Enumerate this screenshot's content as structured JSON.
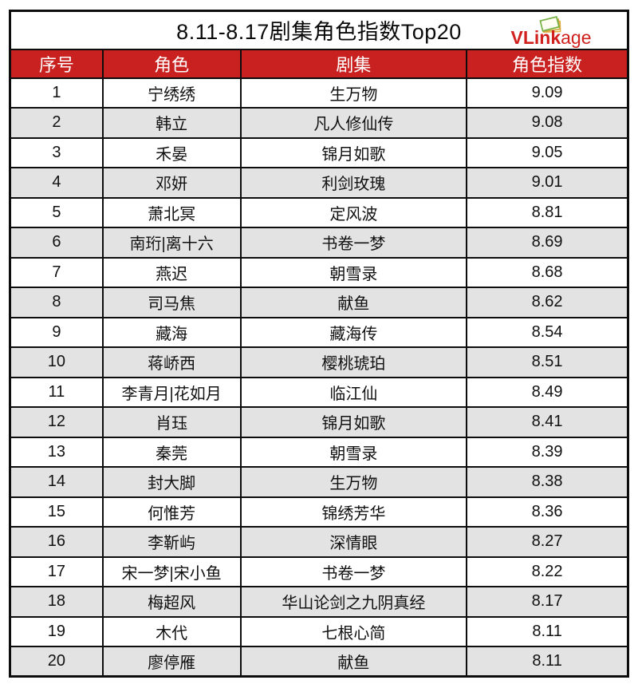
{
  "title_bar": {
    "title": "8.11-8.17剧集角色指数Top20"
  },
  "logo": {
    "text_bold": "VLink",
    "text_light": "age",
    "icon": "stacked-cards-icon",
    "color": "#d0211e"
  },
  "colors": {
    "header_background": "#c9211f",
    "header_text": "#ffffff",
    "row_alt_background": "#e3e3e3",
    "border": "#0d0d0d"
  },
  "chart_data": {
    "type": "table",
    "title": "8.11-8.17剧集角色指数Top20",
    "columns": [
      "序号",
      "角色",
      "剧集",
      "角色指数"
    ],
    "rows": [
      {
        "rank": "1",
        "role": "宁绣绣",
        "drama": "生万物",
        "index": "9.09"
      },
      {
        "rank": "2",
        "role": "韩立",
        "drama": "凡人修仙传",
        "index": "9.08"
      },
      {
        "rank": "3",
        "role": "禾晏",
        "drama": "锦月如歌",
        "index": "9.05"
      },
      {
        "rank": "4",
        "role": "邓妍",
        "drama": "利剑玫瑰",
        "index": "9.01"
      },
      {
        "rank": "5",
        "role": "萧北冥",
        "drama": "定风波",
        "index": "8.81"
      },
      {
        "rank": "6",
        "role": "南珩|离十六",
        "drama": "书卷一梦",
        "index": "8.69"
      },
      {
        "rank": "7",
        "role": "燕迟",
        "drama": "朝雪录",
        "index": "8.68"
      },
      {
        "rank": "8",
        "role": "司马焦",
        "drama": "献鱼",
        "index": "8.62"
      },
      {
        "rank": "9",
        "role": "藏海",
        "drama": "藏海传",
        "index": "8.54"
      },
      {
        "rank": "10",
        "role": "蒋峤西",
        "drama": "樱桃琥珀",
        "index": "8.51"
      },
      {
        "rank": "11",
        "role": "李青月|花如月",
        "drama": "临江仙",
        "index": "8.49"
      },
      {
        "rank": "12",
        "role": "肖珏",
        "drama": "锦月如歌",
        "index": "8.41"
      },
      {
        "rank": "13",
        "role": "秦莞",
        "drama": "朝雪录",
        "index": "8.39"
      },
      {
        "rank": "14",
        "role": "封大脚",
        "drama": "生万物",
        "index": "8.38"
      },
      {
        "rank": "15",
        "role": "何惟芳",
        "drama": "锦绣芳华",
        "index": "8.36"
      },
      {
        "rank": "16",
        "role": "李靳屿",
        "drama": "深情眼",
        "index": "8.27"
      },
      {
        "rank": "17",
        "role": "宋一梦|宋小鱼",
        "drama": "书卷一梦",
        "index": "8.22"
      },
      {
        "rank": "18",
        "role": "梅超风",
        "drama": "华山论剑之九阴真经",
        "index": "8.17"
      },
      {
        "rank": "19",
        "role": "木代",
        "drama": "七根心简",
        "index": "8.11"
      },
      {
        "rank": "20",
        "role": "廖停雁",
        "drama": "献鱼",
        "index": "8.11"
      }
    ]
  }
}
